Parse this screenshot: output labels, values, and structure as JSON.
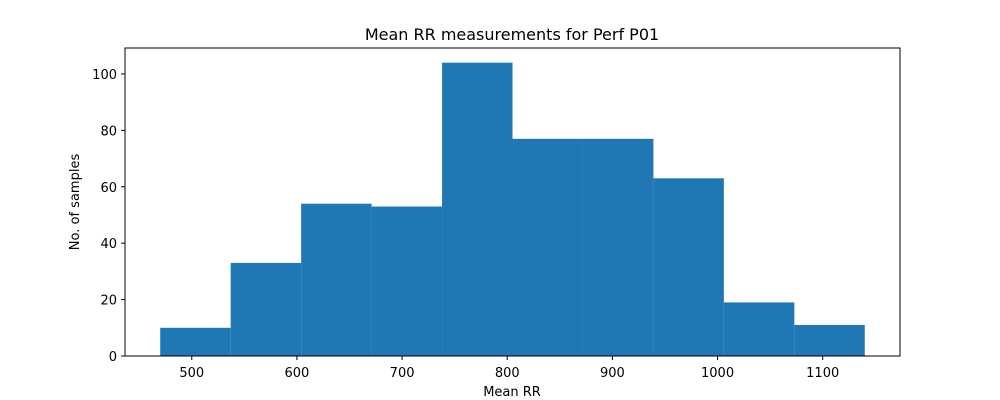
{
  "chart_data": {
    "type": "bar",
    "subtype": "histogram",
    "title": "Mean RR measurements for Perf P01",
    "xlabel": "Mean RR",
    "ylabel": "No. of samples",
    "bin_edges": [
      470,
      537,
      604,
      671,
      738,
      805,
      872,
      939,
      1006,
      1073,
      1140
    ],
    "counts": [
      10,
      33,
      54,
      53,
      104,
      77,
      77,
      63,
      19,
      11
    ],
    "xlim": [
      436.5,
      1173.5
    ],
    "ylim": [
      0,
      109.2
    ],
    "xticks": [
      500,
      600,
      700,
      800,
      900,
      1000,
      1100
    ],
    "yticks": [
      0,
      20,
      40,
      60,
      80,
      100
    ],
    "grid": false,
    "colors": {
      "bar": "#1f77b4",
      "axis": "#000000",
      "background": "#ffffff"
    }
  }
}
